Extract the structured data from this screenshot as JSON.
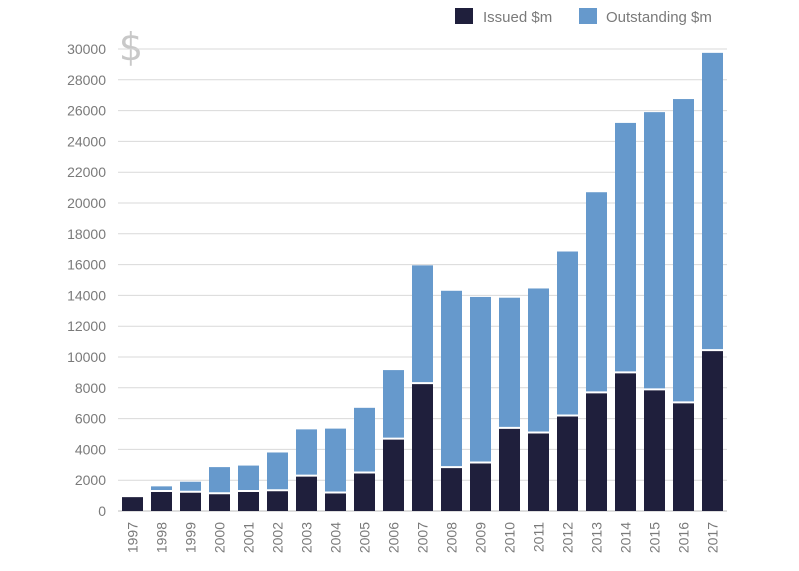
{
  "chart_data": {
    "type": "bar",
    "stacked": true,
    "ylabel": "$",
    "xlabel": "",
    "ylim": [
      0,
      30000
    ],
    "yticks": [
      0,
      2000,
      4000,
      6000,
      8000,
      10000,
      12000,
      14000,
      16000,
      18000,
      20000,
      22000,
      24000,
      26000,
      28000,
      30000
    ],
    "grid": true,
    "legend_position": "top-right",
    "categories": [
      "1997",
      "1998",
      "1999",
      "2000",
      "2001",
      "2002",
      "2003",
      "2004",
      "2005",
      "2006",
      "2007",
      "2008",
      "2009",
      "2010",
      "2011",
      "2012",
      "2013",
      "2014",
      "2015",
      "2016",
      "2017"
    ],
    "series": [
      {
        "name": "Issued $m",
        "color": "#1f1f3c",
        "values": [
          900,
          1300,
          1250,
          1150,
          1300,
          1350,
          2300,
          1200,
          2500,
          4700,
          8300,
          2850,
          3150,
          5400,
          5100,
          6200,
          7700,
          9000,
          7900,
          7050,
          10450
        ]
      },
      {
        "name": "Outstanding $m",
        "color": "#6699cc",
        "values": [
          0,
          300,
          650,
          1700,
          1650,
          2450,
          3000,
          4150,
          4200,
          4450,
          7650,
          11450,
          10750,
          8450,
          9350,
          10650,
          13000,
          16200,
          18000,
          19700,
          19300
        ]
      }
    ]
  }
}
